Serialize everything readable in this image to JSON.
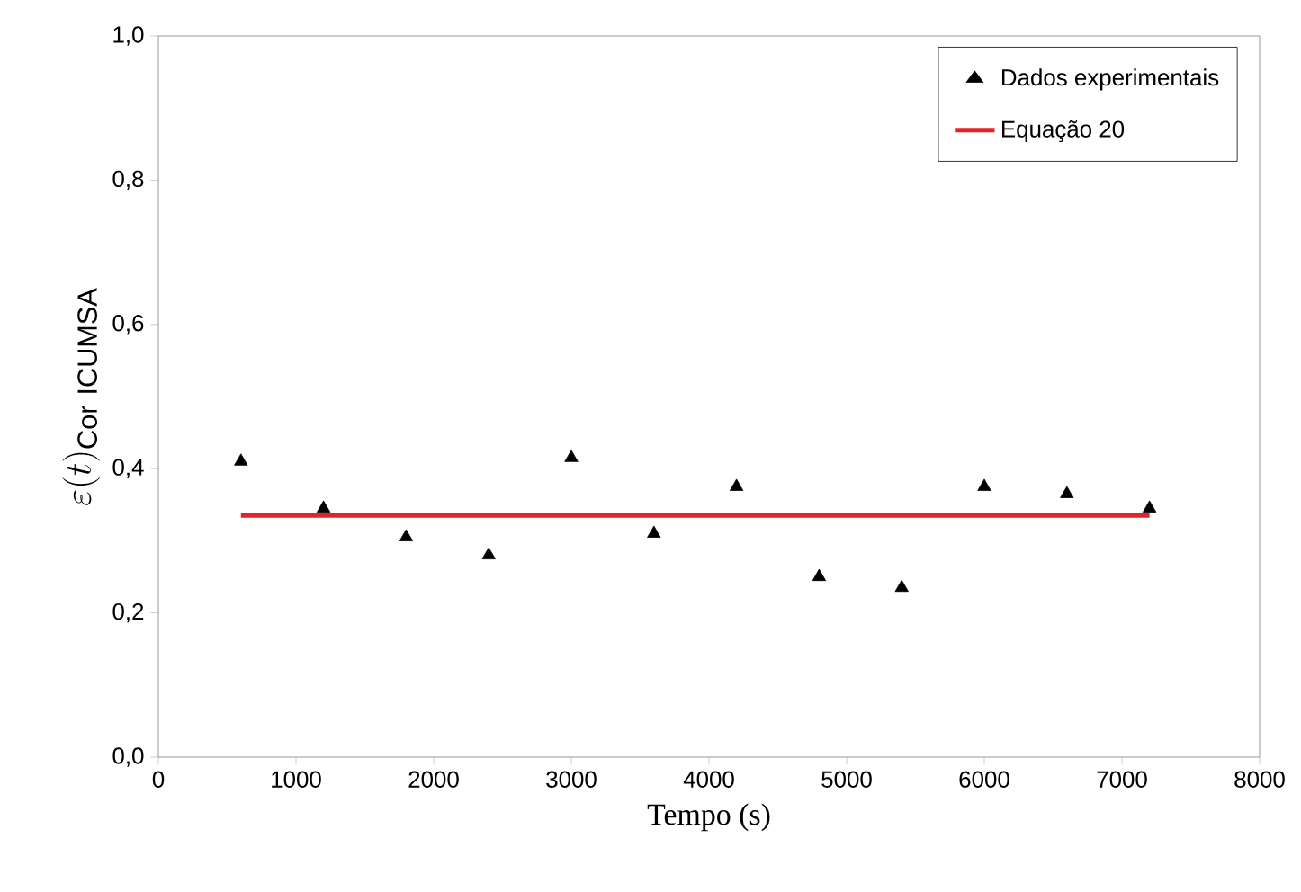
{
  "chart_data": {
    "type": "scatter",
    "xlabel": "Tempo (s)",
    "ylabel": "\\varepsilon(t)_{\\mathrm{Cor\\ ICUMSA}}",
    "xlim": [
      0,
      8000
    ],
    "ylim": [
      0,
      1
    ],
    "xticks": [
      0,
      1000,
      2000,
      3000,
      4000,
      5000,
      6000,
      7000,
      8000
    ],
    "yticks": [
      {
        "value": 0,
        "label": "0,0"
      },
      {
        "value": 0.2,
        "label": "0,2"
      },
      {
        "value": 0.4,
        "label": "0,4"
      },
      {
        "value": 0.6,
        "label": "0,6"
      },
      {
        "value": 0.8,
        "label": "0,8"
      },
      {
        "value": 1,
        "label": "1,0"
      }
    ],
    "grid": false,
    "legend": "top right",
    "series": [
      {
        "name": "Dados experimentais",
        "color": "#000000",
        "marker": "triangle",
        "x": [
          600,
          1200,
          1800,
          2400,
          3000,
          3600,
          4200,
          4800,
          5400,
          6000,
          6600,
          7200
        ],
        "values": [
          0.41,
          0.345,
          0.305,
          0.28,
          0.415,
          0.31,
          0.375,
          0.25,
          0.235,
          0.375,
          0.365,
          0.345
        ]
      },
      {
        "name": "Equação 20",
        "type": "line",
        "color": "#e8202a",
        "marker": "none",
        "line_style": "solid",
        "x": [
          600,
          7200
        ],
        "values": [
          0.335,
          0.335
        ]
      }
    ]
  }
}
